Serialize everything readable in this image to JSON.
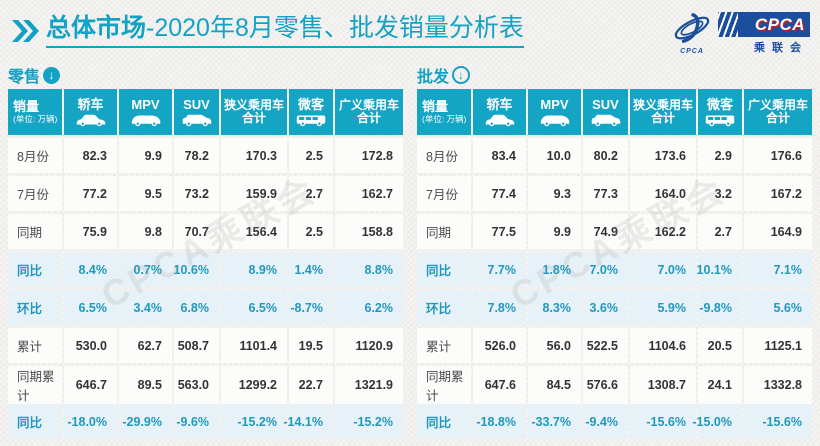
{
  "title": {
    "bold": "总体市场",
    "rest": "-2020年8月零售、批发销量分析表"
  },
  "logo": {
    "brand": "CPCA",
    "sub": "乘联会",
    "mark_caption": "CPCA"
  },
  "watermark": "CPCA乘联会",
  "table_columns": {
    "sales_label": "销量",
    "sales_unit": "(单位: 万辆)",
    "cols": [
      "轿车",
      "MPV",
      "SUV",
      "狭义乘用车合计",
      "微客",
      "广义乘用车合计"
    ]
  },
  "chart_data": [
    {
      "type": "table",
      "title": "零售",
      "unit": "万辆",
      "columns": [
        "销量",
        "轿车",
        "MPV",
        "SUV",
        "狭义乘用车合计",
        "微客",
        "广义乘用车合计"
      ],
      "rows": [
        {
          "label": "8月份",
          "kind": "value",
          "values": [
            "82.3",
            "9.9",
            "78.2",
            "170.3",
            "2.5",
            "172.8"
          ]
        },
        {
          "label": "7月份",
          "kind": "value",
          "values": [
            "77.2",
            "9.5",
            "73.2",
            "159.9",
            "2.7",
            "162.7"
          ]
        },
        {
          "label": "同期",
          "kind": "value",
          "values": [
            "75.9",
            "9.8",
            "70.7",
            "156.4",
            "2.5",
            "158.8"
          ]
        },
        {
          "label": "同比",
          "kind": "pct",
          "values": [
            "8.4%",
            "0.7%",
            "10.6%",
            "8.9%",
            "1.4%",
            "8.8%"
          ]
        },
        {
          "label": "环比",
          "kind": "pct",
          "values": [
            "6.5%",
            "3.4%",
            "6.8%",
            "6.5%",
            "-8.7%",
            "6.2%"
          ]
        },
        {
          "label": "累计",
          "kind": "value",
          "values": [
            "530.0",
            "62.7",
            "508.7",
            "1101.4",
            "19.5",
            "1120.9"
          ]
        },
        {
          "label": "同期累计",
          "kind": "value",
          "values": [
            "646.7",
            "89.5",
            "563.0",
            "1299.2",
            "22.7",
            "1321.9"
          ]
        },
        {
          "label": "同比",
          "kind": "pct",
          "values": [
            "-18.0%",
            "-29.9%",
            "-9.6%",
            "-15.2%",
            "-14.1%",
            "-15.2%"
          ]
        }
      ]
    },
    {
      "type": "table",
      "title": "批发",
      "unit": "万辆",
      "columns": [
        "销量",
        "轿车",
        "MPV",
        "SUV",
        "狭义乘用车合计",
        "微客",
        "广义乘用车合计"
      ],
      "rows": [
        {
          "label": "8月份",
          "kind": "value",
          "values": [
            "83.4",
            "10.0",
            "80.2",
            "173.6",
            "2.9",
            "176.6"
          ]
        },
        {
          "label": "7月份",
          "kind": "value",
          "values": [
            "77.4",
            "9.3",
            "77.3",
            "164.0",
            "3.2",
            "167.2"
          ]
        },
        {
          "label": "同期",
          "kind": "value",
          "values": [
            "77.5",
            "9.9",
            "74.9",
            "162.2",
            "2.7",
            "164.9"
          ]
        },
        {
          "label": "同比",
          "kind": "pct",
          "values": [
            "7.7%",
            "1.8%",
            "7.0%",
            "7.0%",
            "10.1%",
            "7.1%"
          ]
        },
        {
          "label": "环比",
          "kind": "pct",
          "values": [
            "7.8%",
            "8.3%",
            "3.6%",
            "5.9%",
            "-9.8%",
            "5.6%"
          ]
        },
        {
          "label": "累计",
          "kind": "value",
          "values": [
            "526.0",
            "56.0",
            "522.5",
            "1104.6",
            "20.5",
            "1125.1"
          ]
        },
        {
          "label": "同期累计",
          "kind": "value",
          "values": [
            "647.6",
            "84.5",
            "576.6",
            "1308.7",
            "24.1",
            "1332.8"
          ]
        },
        {
          "label": "同比",
          "kind": "pct",
          "values": [
            "-18.8%",
            "-33.7%",
            "-9.4%",
            "-15.6%",
            "-15.0%",
            "-15.6%"
          ]
        }
      ]
    }
  ],
  "colors": {
    "accent_teal": "#15a5c4",
    "pct_bg": "#e6f2f7",
    "logo_blue": "#1b4f9e",
    "logo_red": "#c61d23"
  }
}
